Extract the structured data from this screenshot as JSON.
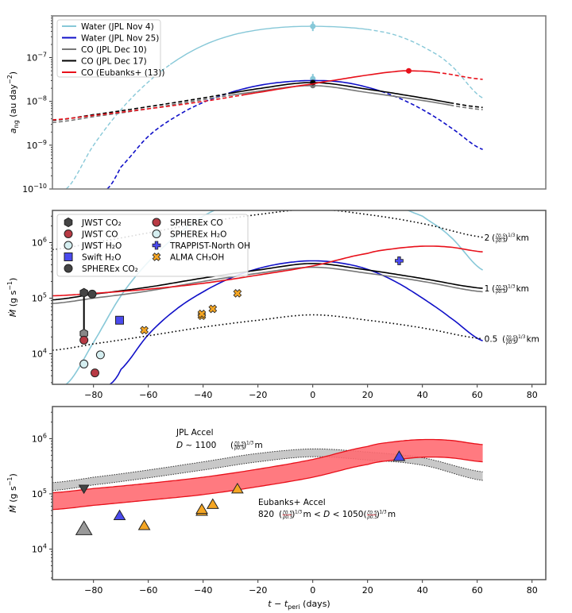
{
  "chart_data": [
    {
      "type": "line",
      "panel": "top",
      "ylabel": "a_ng (au day^-2)",
      "yscale": "log",
      "ylim": [
        1e-10,
        9e-07
      ],
      "xlim": [
        -95,
        85
      ],
      "yticks": [
        {
          "v": 1e-07,
          "label": "10",
          "exp": "−7"
        },
        {
          "v": 1e-08,
          "label": "10",
          "exp": "−8"
        },
        {
          "v": 1e-09,
          "label": "10",
          "exp": "−9"
        },
        {
          "v": 1e-10,
          "label": "10",
          "exp": "−10"
        }
      ],
      "legend": {
        "placement": "top-left",
        "entries": [
          "Water (JPL Nov 4)",
          "Water (JPL Nov 25)",
          "CO (JPL Dec 10)",
          "CO (JPL Dec 17)",
          "CO (Eubanks+ (13))"
        ]
      },
      "series": [
        {
          "name": "Water (JPL Nov 4)",
          "color": "#87c8d8",
          "solid_range": [
            -52,
            20
          ],
          "x": [
            -90,
            -80,
            -70,
            -60,
            -50,
            -40,
            -30,
            -20,
            -10,
            0,
            10,
            20,
            30,
            40,
            50,
            62
          ],
          "y": [
            1e-10,
            1e-09,
            6.5e-09,
            2.8e-08,
            8.5e-08,
            1.9e-07,
            3.2e-07,
            4.3e-07,
            5e-07,
            5.2e-07,
            5e-07,
            4.4e-07,
            3.3e-07,
            1.8e-07,
            7e-08,
            1.2e-08
          ],
          "markers": [
            {
              "x": 0,
              "y": 5.2e-07
            },
            {
              "x": 0,
              "y": 3.3e-08
            }
          ]
        },
        {
          "name": "Water (JPL Nov 25)",
          "color": "#1010c8",
          "solid_range": [
            -30,
            25
          ],
          "x": [
            -75,
            -70,
            -60,
            -50,
            -40,
            -30,
            -20,
            -10,
            0,
            10,
            20,
            30,
            40,
            50,
            62
          ],
          "y": [
            1e-10,
            3.2e-10,
            1.6e-09,
            4.5e-09,
            9.5e-09,
            1.6e-08,
            2.3e-08,
            2.8e-08,
            3e-08,
            2.8e-08,
            2.1e-08,
            1.3e-08,
            6.5e-09,
            2.6e-09,
            8e-10
          ]
        },
        {
          "name": "CO (JPL Dec 10)",
          "color": "#777777",
          "solid_range": [
            -30,
            50
          ],
          "x": [
            -95,
            -80,
            -60,
            -40,
            -20,
            0,
            20,
            40,
            62
          ],
          "y": [
            3.3e-09,
            4.5e-09,
            6.8e-09,
            1.1e-08,
            1.7e-08,
            2.3e-08,
            1.6e-08,
            1.05e-08,
            6.5e-09
          ],
          "markers": [
            {
              "x": 0,
              "y": 2.3e-08
            }
          ]
        },
        {
          "name": "CO (JPL Dec 17)",
          "color": "#000000",
          "solid_range": [
            -30,
            50
          ],
          "x": [
            -95,
            -80,
            -60,
            -40,
            -20,
            0,
            20,
            40,
            62
          ],
          "y": [
            3.7e-09,
            5e-09,
            7.6e-09,
            1.2e-08,
            1.95e-08,
            2.7e-08,
            1.9e-08,
            1.2e-08,
            7.3e-09
          ],
          "markers": [
            {
              "x": 0,
              "y": 2.7e-08
            }
          ]
        },
        {
          "name": "CO (Eubanks+ (13))",
          "color": "#e8101a",
          "solid_range": [
            -25,
            45
          ],
          "x": [
            -95,
            -80,
            -60,
            -40,
            -20,
            0,
            10,
            20,
            30,
            35,
            45,
            62
          ],
          "y": [
            3.8e-09,
            4.8e-09,
            6.8e-09,
            1e-08,
            1.6e-08,
            2.5e-08,
            3.2e-08,
            4e-08,
            4.8e-08,
            5e-08,
            4.6e-08,
            3.2e-08
          ],
          "markers": [
            {
              "x": 35,
              "y": 5e-08
            }
          ]
        }
      ]
    },
    {
      "type": "line",
      "panel": "middle",
      "ylabel": "Ṁ (g s^-1)",
      "yscale": "log",
      "ylim": [
        2800,
        3800000.0
      ],
      "xlim": [
        -95,
        85
      ],
      "xticks": [
        -80,
        -60,
        -40,
        -20,
        0,
        20,
        40,
        60,
        80
      ],
      "yticks": [
        {
          "v": 1000000.0,
          "label": "10",
          "exp": "6"
        },
        {
          "v": 100000.0,
          "label": "10",
          "exp": "5"
        },
        {
          "v": 10000.0,
          "label": "10",
          "exp": "4"
        }
      ],
      "legend": {
        "placement": "top-left",
        "entries": [
          "JWST CO₂",
          "JWST CO",
          "JWST H₂O",
          "Swift H₂O",
          "SPHEREx CO₂",
          "SPHEREx CO",
          "SPHEREx H₂O",
          "TRAPPIST-North OH",
          "ALMA CH₃OH"
        ]
      },
      "series": [
        {
          "name": "Water (JPL Nov 4)",
          "color": "#87c8d8",
          "x": [
            -90,
            -80,
            -70,
            -60,
            -50,
            -40,
            -30,
            -20,
            0,
            20,
            40,
            50,
            62
          ],
          "y": [
            2800,
            16000,
            110000,
            450000,
            1300000,
            3000000,
            5000000,
            7000000,
            9000000,
            7000000,
            3000000,
            1300000,
            320000
          ]
        },
        {
          "name": "Water (JPL Nov 25)",
          "color": "#1010c8",
          "x": [
            -74,
            -70,
            -60,
            -50,
            -40,
            -30,
            -20,
            -10,
            0,
            10,
            20,
            30,
            40,
            50,
            62
          ],
          "y": [
            2800,
            5200,
            22000,
            62000,
            130000,
            230000,
            340000,
            430000,
            470000,
            430000,
            330000,
            200000,
            100000,
            45000,
            17000
          ]
        },
        {
          "name": "CO (JPL Dec 10)",
          "color": "#777777",
          "x": [
            -95,
            -80,
            -60,
            -40,
            -20,
            0,
            20,
            40,
            62
          ],
          "y": [
            80000,
            100000,
            135000,
            200000,
            280000,
            360000,
            280000,
            200000,
            130000
          ]
        },
        {
          "name": "CO (JPL Dec 17)",
          "color": "#000000",
          "x": [
            -95,
            -80,
            -60,
            -40,
            -20,
            0,
            20,
            40,
            62
          ],
          "y": [
            93000,
            118000,
            158000,
            230000,
            320000,
            420000,
            320000,
            225000,
            150000
          ]
        },
        {
          "name": "CO (Eubanks+)",
          "color": "#e8101a",
          "x": [
            -95,
            -80,
            -60,
            -40,
            -20,
            0,
            20,
            30,
            40,
            50,
            62
          ],
          "y": [
            110000,
            122000,
            145000,
            185000,
            260000,
            380000,
            640000,
            780000,
            860000,
            830000,
            680000
          ]
        },
        {
          "name": "2 km",
          "color": "#000000",
          "dotted": true,
          "x": [
            -95,
            -80,
            -60,
            -40,
            -20,
            0,
            20,
            40,
            62
          ],
          "y": [
            750000,
            1000000,
            1500000,
            2300000,
            3200000,
            4000000,
            3200000,
            2200000,
            1250000
          ]
        },
        {
          "name": "0.5 km",
          "color": "#000000",
          "dotted": true,
          "x": [
            -95,
            -80,
            -60,
            -40,
            -20,
            0,
            20,
            40,
            62
          ],
          "y": [
            11500,
            15000,
            21000,
            30000,
            40000,
            50000,
            40000,
            29000,
            18500
          ]
        }
      ],
      "curve_labels": [
        {
          "text": "2",
          "unit": "km",
          "x": 62,
          "y": 1250000
        },
        {
          "text": "1",
          "unit": "km",
          "x": 62,
          "y": 150000
        },
        {
          "text": "0.5",
          "unit": "km",
          "x": 62,
          "y": 18500
        }
      ],
      "points": [
        {
          "name": "JWST CO2",
          "marker": "hexagon",
          "color": "#444444",
          "x": -83.5,
          "y": 125000
        },
        {
          "name": "SPHEREx CO2",
          "marker": "circle",
          "color": "#444444",
          "x": -80.5,
          "y": 118000
        },
        {
          "name": "SPHEREx CO2 lower",
          "marker": "hexagon",
          "color": "#888888",
          "x": -83.5,
          "y": 23000
        },
        {
          "name": "JWST CO",
          "marker": "circle",
          "color": "#b83a44",
          "x": -83.5,
          "y": 17500
        },
        {
          "name": "JWST H2O",
          "marker": "circle",
          "color": "#d5eef0",
          "x": -83.5,
          "y": 6500
        },
        {
          "name": "SPHEREx H2O",
          "marker": "circle",
          "color": "#d5eef0",
          "x": -77.5,
          "y": 9500
        },
        {
          "name": "SPHEREx CO",
          "marker": "circle",
          "color": "#b83a44",
          "x": -79.5,
          "y": 4500
        },
        {
          "name": "Swift H2O",
          "marker": "square",
          "color": "#4a4aee",
          "x": -70.5,
          "y": 40000
        },
        {
          "name": "ALMA CH3OH",
          "marker": "xcross",
          "color": "#f5a623",
          "x": -61.5,
          "y": 26500
        },
        {
          "name": "ALMA CH3OH",
          "marker": "xcross",
          "color": "#f5a623",
          "x": -40.5,
          "y": 48000
        },
        {
          "name": "ALMA CH3OH",
          "marker": "xcross",
          "color": "#f5a623",
          "x": -40.5,
          "y": 52000
        },
        {
          "name": "ALMA CH3OH",
          "marker": "xcross",
          "color": "#f5a623",
          "x": -36.5,
          "y": 64000
        },
        {
          "name": "ALMA CH3OH",
          "marker": "xcross",
          "color": "#f5a623",
          "x": -27.5,
          "y": 122000
        },
        {
          "name": "TRAPPIST-North OH",
          "marker": "plus",
          "color": "#4a4aee",
          "x": 31.5,
          "y": 470000
        }
      ]
    },
    {
      "type": "area",
      "panel": "bottom",
      "xlabel": "t − t_peri (days)",
      "ylabel": "Ṁ (g s^-1)",
      "yscale": "log",
      "ylim": [
        2800,
        3800000.0
      ],
      "xlim": [
        -95,
        85
      ],
      "xticks": [
        -80,
        -60,
        -40,
        -20,
        0,
        20,
        40,
        60,
        80
      ],
      "yticks": [
        {
          "v": 1000000.0,
          "label": "10",
          "exp": "6"
        },
        {
          "v": 100000.0,
          "label": "10",
          "exp": "5"
        },
        {
          "v": 10000.0,
          "label": "10",
          "exp": "4"
        }
      ],
      "bands": [
        {
          "name": "JPL Accel",
          "fill": "#c8c8c8",
          "edge": "#333333",
          "dotted": true,
          "x": [
            -95,
            -80,
            -60,
            -40,
            -20,
            0,
            20,
            40,
            62
          ],
          "lower": [
            115000,
            145000,
            195000,
            270000,
            380000,
            470000,
            410000,
            330000,
            175000
          ],
          "upper": [
            160000,
            200000,
            270000,
            380000,
            540000,
            650000,
            570000,
            450000,
            250000
          ]
        },
        {
          "name": "Eubanks+ Accel",
          "fill": "#ff6b72",
          "edge": "#e8101a",
          "dotted": false,
          "x": [
            -95,
            -80,
            -60,
            -40,
            -20,
            0,
            20,
            30,
            40,
            50,
            62
          ],
          "lower": [
            52000,
            62000,
            77000,
            97000,
            135000,
            200000,
            340000,
            410000,
            460000,
            450000,
            380000
          ],
          "upper": [
            105000,
            125000,
            155000,
            200000,
            280000,
            420000,
            720000,
            880000,
            960000,
            930000,
            780000
          ]
        }
      ],
      "annotations": [
        {
          "lines": [
            "JPL Accel",
            "D ~ 1100 (ζ0.5/ρ0.5)^1/3 m"
          ],
          "color": "#000000"
        },
        {
          "lines": [
            "Eubanks+ Accel",
            "820 (ζ0.5/ρ0.5)^1/3 m < D < 1050 (ζ0.5/ρ0.5)^1/3 m"
          ],
          "color": "#e8101a"
        }
      ],
      "points": [
        {
          "marker": "triangle-down",
          "color": "#444444",
          "x": -83.5,
          "y": 125000
        },
        {
          "marker": "triangle",
          "color": "#999999",
          "x": -83.5,
          "y": 23000,
          "big": true
        },
        {
          "marker": "triangle",
          "color": "#4a4aee",
          "x": -70.5,
          "y": 40000
        },
        {
          "marker": "triangle",
          "color": "#f5a623",
          "x": -61.5,
          "y": 26500
        },
        {
          "marker": "triangle",
          "color": "#f5a623",
          "x": -40.5,
          "y": 48000
        },
        {
          "marker": "triangle",
          "color": "#f5a623",
          "x": -40.5,
          "y": 52000
        },
        {
          "marker": "triangle",
          "color": "#f5a623",
          "x": -36.5,
          "y": 64000
        },
        {
          "marker": "triangle",
          "color": "#f5a623",
          "x": -27.5,
          "y": 122000
        },
        {
          "marker": "triangle",
          "color": "#4a4aee",
          "x": 31.5,
          "y": 470000
        }
      ]
    }
  ]
}
